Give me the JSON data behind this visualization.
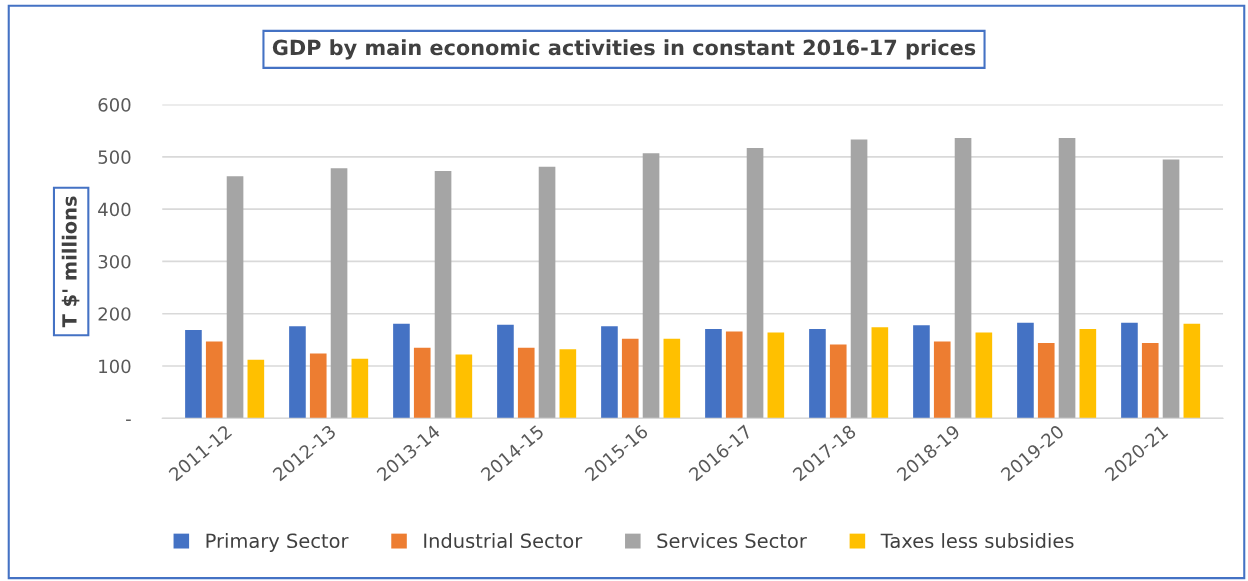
{
  "chart_data": {
    "type": "bar",
    "title": "GDP by main economic activities in constant 2016-17 prices",
    "ylabel": "T $' millions",
    "categories": [
      "2011-12",
      "2012-13",
      "2013-14",
      "2014-15",
      "2015-16",
      "2016-17",
      "2017-18",
      "2018-19",
      "2019-20",
      "2020-21"
    ],
    "series": [
      {
        "name": "Primary Sector",
        "color": "#4472c4",
        "values": [
          169,
          176,
          181,
          179,
          176,
          171,
          171,
          178,
          183,
          183
        ]
      },
      {
        "name": "Industrial Sector",
        "color": "#ed7d31",
        "values": [
          147,
          124,
          135,
          135,
          152,
          166,
          141,
          147,
          144,
          144
        ]
      },
      {
        "name": "Services Sector",
        "color": "#a5a5a5",
        "values": [
          463,
          478,
          473,
          481,
          507,
          517,
          533,
          536,
          536,
          495
        ]
      },
      {
        "name": "Taxes less subsidies",
        "color": "#ffc000",
        "values": [
          112,
          114,
          122,
          132,
          152,
          164,
          174,
          164,
          171,
          181
        ]
      }
    ],
    "ylim": [
      0,
      600
    ],
    "yticks": [
      {
        "value": 0,
        "label": "-"
      },
      100,
      200,
      300,
      400,
      500,
      600
    ],
    "grid": "y",
    "legend": "bottom"
  }
}
